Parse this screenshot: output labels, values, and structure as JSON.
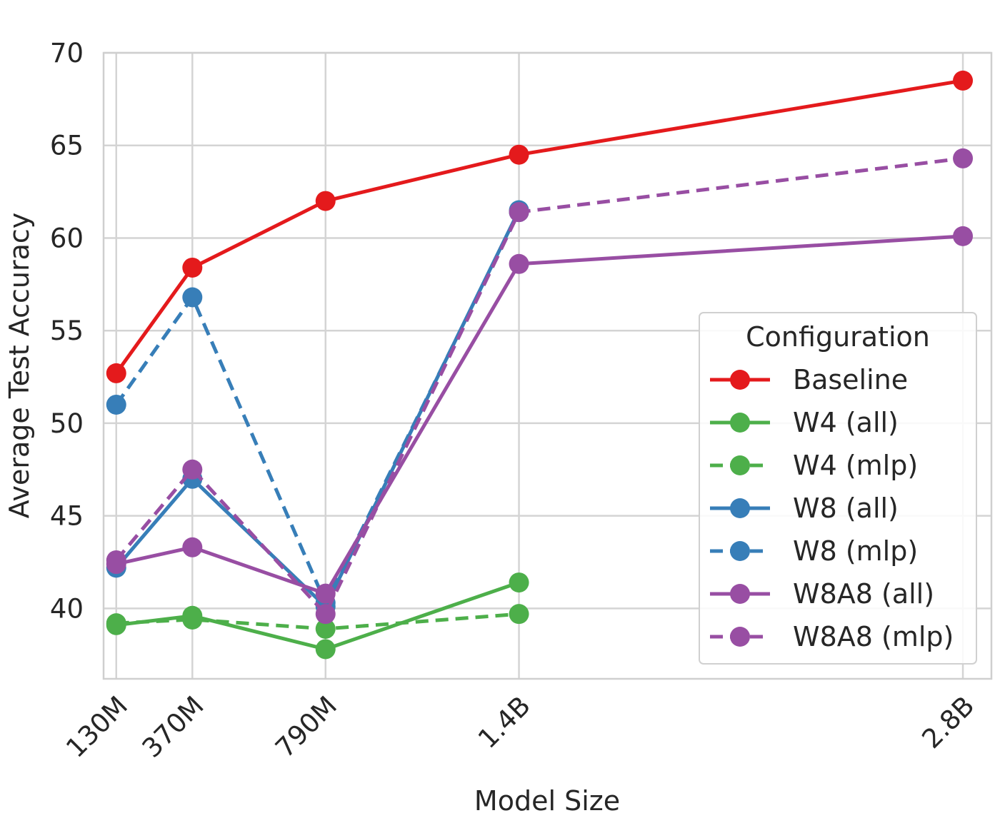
{
  "chart_data": {
    "type": "line",
    "xlabel": "Model Size",
    "ylabel": "Average Test Accuracy",
    "categories": [
      "130M",
      "370M",
      "790M",
      "1.4B",
      "2.8B"
    ],
    "x_numeric": [
      130,
      370,
      790,
      1400,
      2800
    ],
    "ylim": [
      36.2,
      70
    ],
    "yticks": [
      40,
      45,
      50,
      55,
      60,
      65,
      70
    ],
    "grid": true,
    "legend": {
      "title": "Configuration",
      "placement": "lower-right"
    },
    "series": [
      {
        "name": "Baseline",
        "color": "#e41a1c",
        "dashed": false,
        "values": [
          52.7,
          58.4,
          62.0,
          64.5,
          68.5
        ]
      },
      {
        "name": "W4 (all)",
        "color": "#4daf4a",
        "dashed": false,
        "values": [
          39.1,
          39.6,
          37.8,
          41.4,
          null
        ]
      },
      {
        "name": "W4 (mlp)",
        "color": "#4daf4a",
        "dashed": true,
        "values": [
          39.2,
          39.4,
          38.9,
          39.7,
          null
        ]
      },
      {
        "name": "W8 (all)",
        "color": "#377eb8",
        "dashed": false,
        "values": [
          42.2,
          47.0,
          40.1,
          61.5,
          null
        ]
      },
      {
        "name": "W8 (mlp)",
        "color": "#377eb8",
        "dashed": true,
        "values": [
          51.0,
          56.8,
          40.3,
          61.4,
          null
        ]
      },
      {
        "name": "W8A8 (all)",
        "color": "#984ea3",
        "dashed": false,
        "values": [
          42.4,
          43.3,
          40.8,
          58.6,
          60.1
        ]
      },
      {
        "name": "W8A8 (mlp)",
        "color": "#984ea3",
        "dashed": true,
        "values": [
          42.6,
          47.5,
          39.7,
          61.4,
          64.3
        ]
      }
    ]
  }
}
